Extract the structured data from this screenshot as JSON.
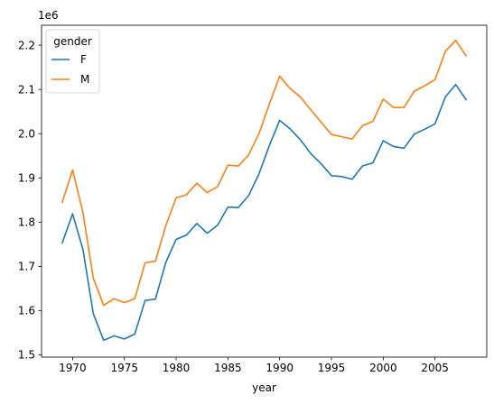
{
  "chart_data": {
    "type": "line",
    "xlabel": "year",
    "ylabel": "",
    "y_offset_label": "1e6",
    "xlim": [
      1967,
      2010
    ],
    "ylim": [
      1.495,
      2.245
    ],
    "x_ticks": [
      1970,
      1975,
      1980,
      1985,
      1990,
      1995,
      2000,
      2005
    ],
    "x_tick_labels": [
      "1970",
      "1975",
      "1980",
      "1985",
      "1990",
      "1995",
      "2000",
      "2005"
    ],
    "y_ticks": [
      1.5,
      1.6,
      1.7,
      1.8,
      1.9,
      2.0,
      2.1,
      2.2
    ],
    "y_tick_labels": [
      "1.5",
      "1.6",
      "1.7",
      "1.8",
      "1.9",
      "2.0",
      "2.1",
      "2.2"
    ],
    "grid": false,
    "legend": {
      "title": "gender",
      "placement": "top-left"
    },
    "x": [
      1969,
      1970,
      1971,
      1972,
      1973,
      1974,
      1975,
      1976,
      1977,
      1978,
      1979,
      1980,
      1981,
      1982,
      1983,
      1984,
      1985,
      1986,
      1987,
      1988,
      1989,
      1990,
      1991,
      1992,
      1993,
      1994,
      1995,
      1996,
      1997,
      1998,
      1999,
      2000,
      2001,
      2002,
      2003,
      2004,
      2005,
      2006,
      2007,
      2008
    ],
    "series": [
      {
        "name": "F",
        "color": "#1f77b4",
        "values": [
          1.753,
          1.819,
          1.738,
          1.593,
          1.533,
          1.543,
          1.536,
          1.547,
          1.623,
          1.626,
          1.709,
          1.761,
          1.771,
          1.797,
          1.775,
          1.793,
          1.834,
          1.833,
          1.86,
          1.909,
          1.973,
          2.03,
          2.011,
          1.986,
          1.955,
          1.932,
          1.905,
          1.903,
          1.897,
          1.927,
          1.934,
          1.984,
          1.971,
          1.967,
          1.999,
          2.01,
          2.022,
          2.083,
          2.111,
          2.077
        ]
      },
      {
        "name": "M",
        "color": "#ff7f0e",
        "values": [
          1.845,
          1.918,
          1.822,
          1.673,
          1.612,
          1.627,
          1.618,
          1.627,
          1.708,
          1.712,
          1.792,
          1.855,
          1.862,
          1.888,
          1.867,
          1.88,
          1.929,
          1.927,
          1.952,
          2.0,
          2.067,
          2.13,
          2.102,
          2.083,
          2.054,
          2.026,
          1.998,
          1.993,
          1.988,
          2.018,
          2.028,
          2.078,
          2.059,
          2.059,
          2.096,
          2.108,
          2.122,
          2.186,
          2.211,
          2.176
        ]
      }
    ]
  }
}
